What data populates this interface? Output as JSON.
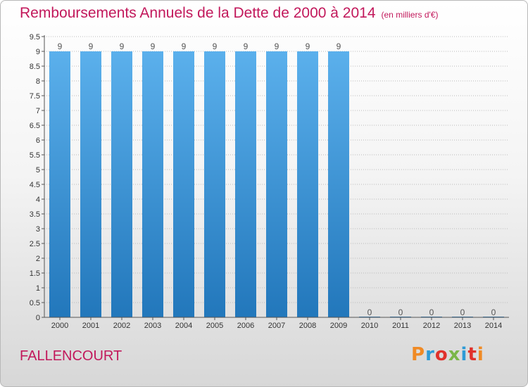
{
  "header": {
    "title": "Remboursements Annuels de la Dette de 2000 à 2014",
    "subtitle": "(en milliers d'€)"
  },
  "footer": {
    "commune": "FALLENCOURT",
    "logo_text": "Proxiti",
    "logo_colors": [
      "#f08a24",
      "#2e9bd6",
      "#e0312b",
      "#7ab648",
      "#2e9bd6",
      "#e0312b",
      "#f08a24"
    ]
  },
  "colors": {
    "bar_top": "#5bb0ec",
    "bar_bottom": "#2277bb",
    "title": "#c2185b",
    "grid": "#bbbbbb"
  },
  "chart_data": {
    "type": "bar",
    "categories": [
      "2000",
      "2001",
      "2002",
      "2003",
      "2004",
      "2005",
      "2006",
      "2007",
      "2008",
      "2009",
      "2010",
      "2011",
      "2012",
      "2013",
      "2014"
    ],
    "values": [
      9,
      9,
      9,
      9,
      9,
      9,
      9,
      9,
      9,
      9,
      0,
      0,
      0,
      0,
      0
    ],
    "data_labels": [
      "9",
      "9",
      "9",
      "9",
      "9",
      "9",
      "9",
      "9",
      "9",
      "9",
      "0",
      "0",
      "0",
      "0",
      "0"
    ],
    "y_ticks": [
      "0",
      "0.5",
      "1",
      "1.5",
      "2",
      "2.5",
      "3",
      "3.5",
      "4",
      "4.5",
      "5",
      "5.5",
      "6",
      "6.5",
      "7",
      "7.5",
      "8",
      "8.5",
      "9",
      "9.5"
    ],
    "ylim": [
      0,
      9.5
    ],
    "grid": "horizontal"
  }
}
